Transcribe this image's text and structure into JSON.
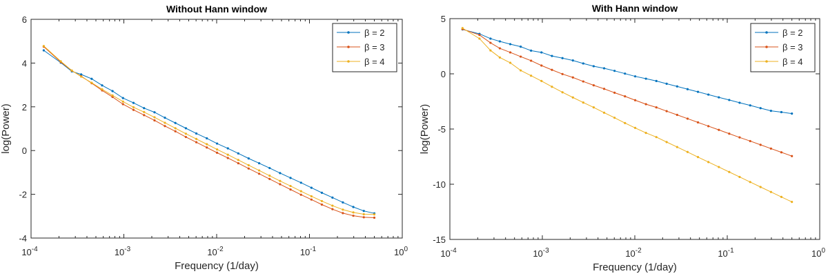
{
  "chart_data": [
    {
      "type": "line",
      "title": "Without Hann window",
      "xlabel": "Frequency (1/day)",
      "ylabel": "log(Power)",
      "xscale": "log",
      "xlim": [
        0.0001,
        1
      ],
      "ylim": [
        -4,
        6
      ],
      "xticks": [
        {
          "v": 0.0001,
          "base": "10",
          "exp": "-4"
        },
        {
          "v": 0.001,
          "base": "10",
          "exp": "-3"
        },
        {
          "v": 0.01,
          "base": "10",
          "exp": "-2"
        },
        {
          "v": 0.1,
          "base": "10",
          "exp": "-1"
        },
        {
          "v": 1,
          "base": "10",
          "exp": "0"
        }
      ],
      "yticks": [
        6,
        4,
        2,
        0,
        -2,
        -4
      ],
      "legend": "top-right",
      "grid": false,
      "x": [
        0.000137,
        0.000209,
        0.000275,
        0.000347,
        0.00045,
        0.000583,
        0.000755,
        0.000979,
        0.00127,
        0.00165,
        0.00214,
        0.00277,
        0.00359,
        0.00466,
        0.00604,
        0.00783,
        0.0101,
        0.0132,
        0.0171,
        0.0221,
        0.0287,
        0.0372,
        0.0482,
        0.0625,
        0.0811,
        0.105,
        0.136,
        0.177,
        0.229,
        0.297,
        0.385,
        0.5
      ],
      "series": [
        {
          "name": "β = 2",
          "color": "#0072BD",
          "values": [
            4.58,
            4.02,
            3.62,
            3.48,
            3.28,
            2.98,
            2.72,
            2.4,
            2.18,
            1.94,
            1.75,
            1.5,
            1.26,
            1.02,
            0.78,
            0.56,
            0.32,
            0.1,
            -0.13,
            -0.36,
            -0.58,
            -0.8,
            -1.03,
            -1.25,
            -1.47,
            -1.7,
            -1.93,
            -2.15,
            -2.37,
            -2.58,
            -2.76,
            -2.87
          ]
        },
        {
          "name": "β = 3",
          "color": "#D95319",
          "values": [
            4.75,
            4.05,
            3.65,
            3.4,
            3.08,
            2.75,
            2.45,
            2.12,
            1.86,
            1.62,
            1.38,
            1.12,
            0.88,
            0.62,
            0.38,
            0.14,
            -0.1,
            -0.34,
            -0.58,
            -0.82,
            -1.06,
            -1.3,
            -1.54,
            -1.78,
            -2.02,
            -2.24,
            -2.47,
            -2.68,
            -2.86,
            -2.98,
            -3.05,
            -3.07
          ]
        },
        {
          "name": "β = 4",
          "color": "#EDB120",
          "values": [
            4.78,
            4.08,
            3.66,
            3.38,
            3.1,
            2.8,
            2.52,
            2.24,
            1.98,
            1.76,
            1.52,
            1.27,
            1.02,
            0.77,
            0.53,
            0.29,
            0.05,
            -0.19,
            -0.43,
            -0.67,
            -0.91,
            -1.15,
            -1.39,
            -1.62,
            -1.86,
            -2.09,
            -2.31,
            -2.52,
            -2.7,
            -2.83,
            -2.91,
            -2.92
          ]
        }
      ]
    },
    {
      "type": "line",
      "title": "With Hann window",
      "xlabel": "Frequency (1/day)",
      "ylabel": "log(Power)",
      "xscale": "log",
      "xlim": [
        0.0001,
        1
      ],
      "ylim": [
        -15,
        5
      ],
      "xticks": [
        {
          "v": 0.0001,
          "base": "10",
          "exp": "-4"
        },
        {
          "v": 0.001,
          "base": "10",
          "exp": "-3"
        },
        {
          "v": 0.01,
          "base": "10",
          "exp": "-2"
        },
        {
          "v": 0.1,
          "base": "10",
          "exp": "-1"
        },
        {
          "v": 1,
          "base": "10",
          "exp": "0"
        }
      ],
      "yticks": [
        5,
        0,
        -5,
        -10,
        -15
      ],
      "legend": "top-right",
      "grid": false,
      "x": [
        0.000137,
        0.000209,
        0.000275,
        0.000347,
        0.00045,
        0.000583,
        0.000755,
        0.000979,
        0.00127,
        0.00165,
        0.00214,
        0.00277,
        0.00359,
        0.00466,
        0.00604,
        0.00783,
        0.0101,
        0.0132,
        0.0171,
        0.0221,
        0.0287,
        0.0372,
        0.0482,
        0.0625,
        0.0811,
        0.105,
        0.136,
        0.177,
        0.229,
        0.297,
        0.385,
        0.5
      ],
      "series": [
        {
          "name": "β = 2",
          "color": "#0072BD",
          "values": [
            4.02,
            3.62,
            3.19,
            2.94,
            2.69,
            2.46,
            2.1,
            1.94,
            1.62,
            1.42,
            1.21,
            0.94,
            0.69,
            0.5,
            0.27,
            0.02,
            -0.23,
            -0.44,
            -0.65,
            -0.9,
            -1.14,
            -1.39,
            -1.63,
            -1.88,
            -2.13,
            -2.37,
            -2.62,
            -2.86,
            -3.11,
            -3.35,
            -3.47,
            -3.6
          ]
        },
        {
          "name": "β = 3",
          "color": "#D95319",
          "values": [
            4.05,
            3.52,
            2.81,
            2.31,
            1.94,
            1.56,
            1.19,
            0.75,
            0.36,
            -0.02,
            -0.33,
            -0.69,
            -1.04,
            -1.36,
            -1.71,
            -2.04,
            -2.39,
            -2.75,
            -3.04,
            -3.38,
            -3.72,
            -4.06,
            -4.4,
            -4.74,
            -5.08,
            -5.42,
            -5.76,
            -6.09,
            -6.43,
            -6.77,
            -7.11,
            -7.45
          ]
        },
        {
          "name": "β = 4",
          "color": "#EDB120",
          "values": [
            4.14,
            3.19,
            2.12,
            1.48,
            1.0,
            0.31,
            -0.17,
            -0.65,
            -1.17,
            -1.67,
            -2.14,
            -2.6,
            -3.04,
            -3.52,
            -3.98,
            -4.46,
            -4.9,
            -5.35,
            -5.73,
            -6.18,
            -6.63,
            -7.08,
            -7.54,
            -7.99,
            -8.44,
            -8.89,
            -9.34,
            -9.8,
            -10.25,
            -10.7,
            -11.15,
            -11.6
          ]
        }
      ]
    }
  ]
}
